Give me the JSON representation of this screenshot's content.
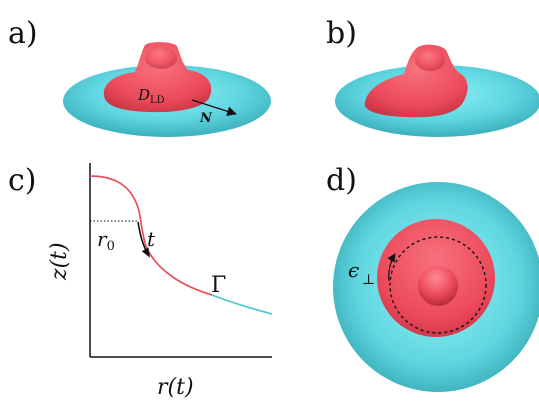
{
  "panels": {
    "a": {
      "label": "a)",
      "domain_main": "D",
      "domain_sub": "LD",
      "normal_label": "N"
    },
    "b": {
      "label": "b)"
    },
    "c": {
      "label": "c)",
      "z_axis": "z(t)",
      "r_axis": "r(t)",
      "r0": "r",
      "r0_sub": "0",
      "t_label": "t",
      "gamma": "Γ"
    },
    "d": {
      "label": "d)",
      "epsilon": "ϵ",
      "perp": "⊥"
    }
  },
  "colors": {
    "membrane": "#5fd6e0",
    "domain": "#ec4a5b",
    "curve_cyan": "#4fc6d2",
    "curve_red": "#e8505e"
  }
}
